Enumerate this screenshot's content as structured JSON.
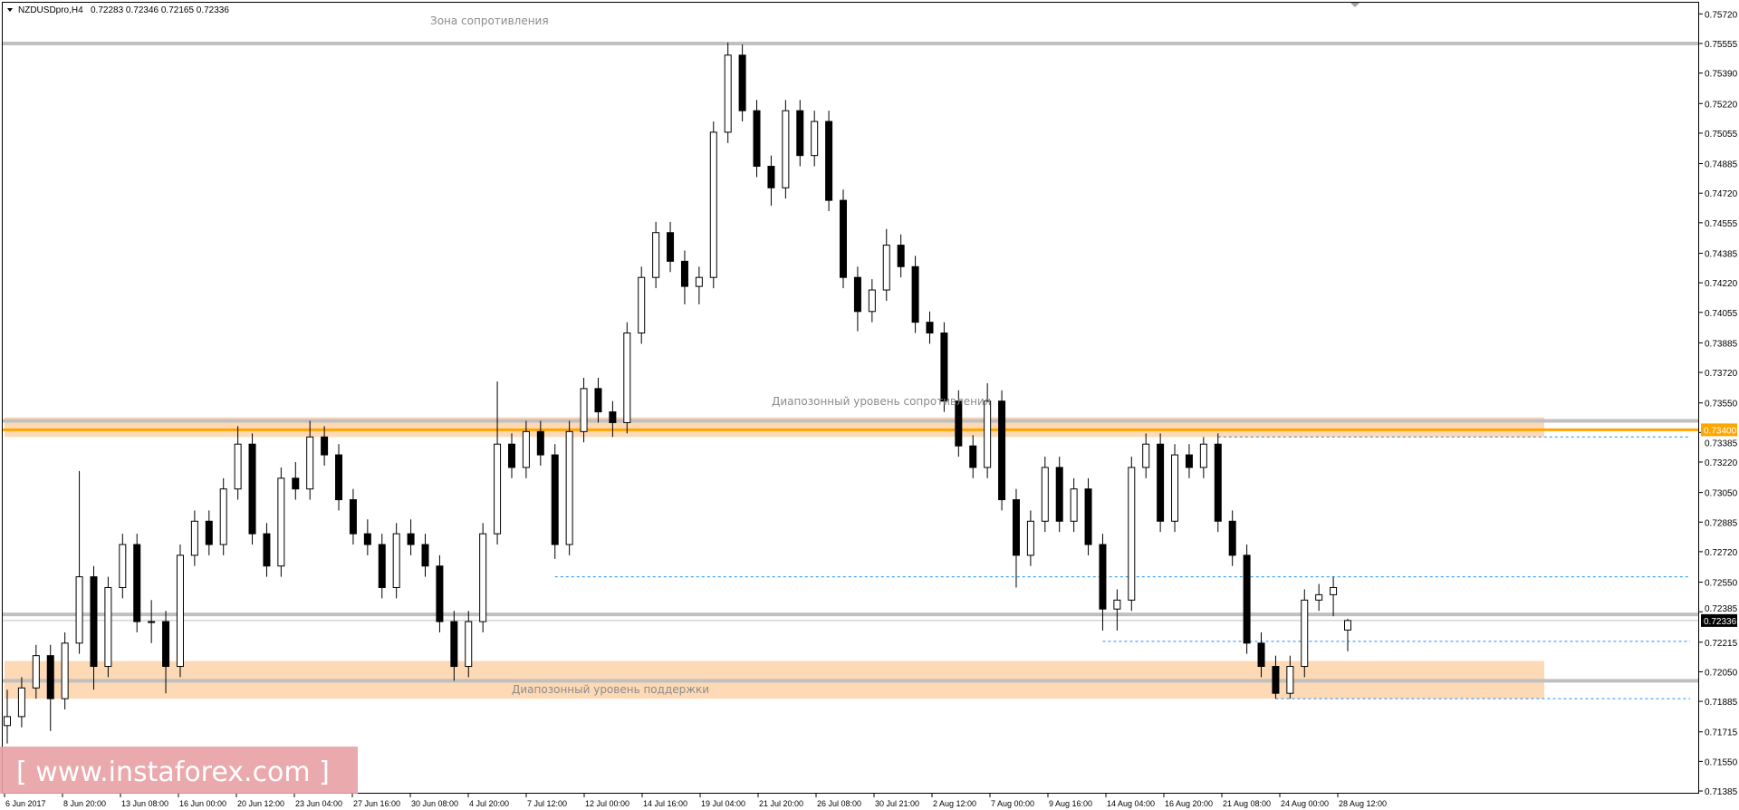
{
  "chart_data": {
    "type": "candlestick",
    "header": {
      "symbol": "NZDUSDpro,H4",
      "ohlc": "0.72283 0.72346 0.72165 0.72336"
    },
    "ylim": [
      0.7135,
      0.7576
    ],
    "y_ticks": [
      "0.75720",
      "0.75555",
      "0.75390",
      "0.75220",
      "0.75055",
      "0.74885",
      "0.74720",
      "0.74555",
      "0.74385",
      "0.74220",
      "0.74055",
      "0.73885",
      "0.73720",
      "0.73550",
      "0.73385",
      "0.73220",
      "0.73050",
      "0.72885",
      "0.72720",
      "0.72550",
      "0.72385",
      "0.72215",
      "0.72050",
      "0.71885",
      "0.71715",
      "0.71550",
      "0.71385"
    ],
    "x_ticks": [
      "6 Jun 2017",
      "8 Jun 20:00",
      "13 Jun 08:00",
      "16 Jun 00:00",
      "20 Jun 12:00",
      "23 Jun 04:00",
      "27 Jun 16:00",
      "30 Jun 08:00",
      "4 Jul 20:00",
      "7 Jul 12:00",
      "12 Jul 00:00",
      "14 Jul 16:00",
      "19 Jul 04:00",
      "21 Jul 20:00",
      "26 Jul 08:00",
      "30 Jul 21:00",
      "2 Aug 12:00",
      "7 Aug 00:00",
      "9 Aug 16:00",
      "14 Aug 04:00",
      "16 Aug 20:00",
      "21 Aug 08:00",
      "24 Aug 00:00",
      "28 Aug 12:00"
    ],
    "candles_ohlc": [
      [
        0.7175,
        0.7195,
        0.7165,
        0.718
      ],
      [
        0.718,
        0.7202,
        0.7174,
        0.7196
      ],
      [
        0.7196,
        0.722,
        0.719,
        0.7214
      ],
      [
        0.7214,
        0.722,
        0.7172,
        0.719
      ],
      [
        0.719,
        0.7227,
        0.7184,
        0.7221
      ],
      [
        0.7221,
        0.7317,
        0.7215,
        0.7258
      ],
      [
        0.7258,
        0.7264,
        0.7195,
        0.7208
      ],
      [
        0.7208,
        0.7258,
        0.7202,
        0.7252
      ],
      [
        0.7252,
        0.7282,
        0.7246,
        0.7276
      ],
      [
        0.7276,
        0.7282,
        0.7227,
        0.7233
      ],
      [
        0.7233,
        0.7245,
        0.7221,
        0.7233
      ],
      [
        0.7233,
        0.7239,
        0.7193,
        0.7208
      ],
      [
        0.7208,
        0.7276,
        0.7202,
        0.727
      ],
      [
        0.727,
        0.7295,
        0.7264,
        0.7289
      ],
      [
        0.7289,
        0.7295,
        0.727,
        0.7276
      ],
      [
        0.7276,
        0.7313,
        0.727,
        0.7307
      ],
      [
        0.7307,
        0.7342,
        0.7301,
        0.7332
      ],
      [
        0.7332,
        0.7338,
        0.7276,
        0.7282
      ],
      [
        0.7282,
        0.7288,
        0.7258,
        0.7264
      ],
      [
        0.7264,
        0.7319,
        0.7258,
        0.7313
      ],
      [
        0.7313,
        0.7322,
        0.7301,
        0.7307
      ],
      [
        0.7307,
        0.7345,
        0.7301,
        0.7336
      ],
      [
        0.7336,
        0.7342,
        0.732,
        0.7326
      ],
      [
        0.7326,
        0.7332,
        0.7295,
        0.7301
      ],
      [
        0.7301,
        0.7307,
        0.7276,
        0.7282
      ],
      [
        0.7282,
        0.729,
        0.727,
        0.7276
      ],
      [
        0.7276,
        0.7282,
        0.7246,
        0.7252
      ],
      [
        0.7252,
        0.7288,
        0.7246,
        0.7282
      ],
      [
        0.7282,
        0.729,
        0.727,
        0.7276
      ],
      [
        0.7276,
        0.7282,
        0.7258,
        0.7264
      ],
      [
        0.7264,
        0.727,
        0.7227,
        0.7233
      ],
      [
        0.7233,
        0.7239,
        0.72,
        0.7208
      ],
      [
        0.7208,
        0.7239,
        0.7202,
        0.7233
      ],
      [
        0.7233,
        0.7288,
        0.7227,
        0.7282
      ],
      [
        0.7282,
        0.7367,
        0.7276,
        0.7332
      ],
      [
        0.7332,
        0.7338,
        0.7313,
        0.7319
      ],
      [
        0.7319,
        0.7345,
        0.7313,
        0.7339
      ],
      [
        0.7339,
        0.7345,
        0.732,
        0.7326
      ],
      [
        0.7326,
        0.7332,
        0.7268,
        0.7276
      ],
      [
        0.7276,
        0.7345,
        0.727,
        0.7339
      ],
      [
        0.7339,
        0.7369,
        0.7333,
        0.7363
      ],
      [
        0.7363,
        0.7369,
        0.7344,
        0.735
      ],
      [
        0.735,
        0.7356,
        0.7336,
        0.7344
      ],
      [
        0.7344,
        0.74,
        0.7338,
        0.7394
      ],
      [
        0.7394,
        0.7431,
        0.7388,
        0.7425
      ],
      [
        0.7425,
        0.7456,
        0.7419,
        0.745
      ],
      [
        0.745,
        0.7456,
        0.7428,
        0.7434
      ],
      [
        0.7434,
        0.744,
        0.741,
        0.742
      ],
      [
        0.742,
        0.7431,
        0.741,
        0.7425
      ],
      [
        0.7425,
        0.7512,
        0.7419,
        0.7506
      ],
      [
        0.7506,
        0.7556,
        0.75,
        0.7549
      ],
      [
        0.7549,
        0.7555,
        0.7512,
        0.7518
      ],
      [
        0.7518,
        0.7524,
        0.7481,
        0.7487
      ],
      [
        0.7487,
        0.7493,
        0.7465,
        0.7475
      ],
      [
        0.7475,
        0.7524,
        0.7469,
        0.7518
      ],
      [
        0.7518,
        0.7524,
        0.7487,
        0.7493
      ],
      [
        0.7493,
        0.7518,
        0.7487,
        0.7512
      ],
      [
        0.7512,
        0.7518,
        0.7462,
        0.7468
      ],
      [
        0.7468,
        0.7474,
        0.7419,
        0.7425
      ],
      [
        0.7425,
        0.7431,
        0.7395,
        0.7406
      ],
      [
        0.7406,
        0.7424,
        0.74,
        0.7418
      ],
      [
        0.7418,
        0.7452,
        0.7412,
        0.7443
      ],
      [
        0.7443,
        0.7449,
        0.7425,
        0.7431
      ],
      [
        0.7431,
        0.7437,
        0.7394,
        0.74
      ],
      [
        0.74,
        0.7406,
        0.7388,
        0.7394
      ],
      [
        0.7394,
        0.74,
        0.735,
        0.7356
      ],
      [
        0.7356,
        0.7362,
        0.7325,
        0.7331
      ],
      [
        0.7331,
        0.7337,
        0.7313,
        0.7319
      ],
      [
        0.7319,
        0.7366,
        0.7313,
        0.7356
      ],
      [
        0.7356,
        0.7362,
        0.7295,
        0.7301
      ],
      [
        0.7301,
        0.7307,
        0.7252,
        0.727
      ],
      [
        0.727,
        0.7295,
        0.7264,
        0.7289
      ],
      [
        0.7289,
        0.7325,
        0.7283,
        0.7319
      ],
      [
        0.7319,
        0.7325,
        0.7283,
        0.7289
      ],
      [
        0.7289,
        0.7313,
        0.7283,
        0.7307
      ],
      [
        0.7307,
        0.7313,
        0.727,
        0.7276
      ],
      [
        0.7276,
        0.7282,
        0.7228,
        0.724
      ],
      [
        0.724,
        0.7251,
        0.7228,
        0.7245
      ],
      [
        0.7245,
        0.7325,
        0.7239,
        0.7319
      ],
      [
        0.7319,
        0.7338,
        0.7313,
        0.7332
      ],
      [
        0.7332,
        0.7338,
        0.7283,
        0.7289
      ],
      [
        0.7289,
        0.7332,
        0.7283,
        0.7326
      ],
      [
        0.7326,
        0.7332,
        0.7313,
        0.7319
      ],
      [
        0.7319,
        0.7336,
        0.7313,
        0.7332
      ],
      [
        0.7332,
        0.7338,
        0.7283,
        0.7289
      ],
      [
        0.7289,
        0.7295,
        0.7264,
        0.727
      ],
      [
        0.727,
        0.7276,
        0.7215,
        0.7221
      ],
      [
        0.7221,
        0.7227,
        0.7202,
        0.7208
      ],
      [
        0.7208,
        0.7214,
        0.719,
        0.7193
      ],
      [
        0.7193,
        0.7214,
        0.719,
        0.7208
      ],
      [
        0.7208,
        0.7251,
        0.7202,
        0.7245
      ],
      [
        0.7245,
        0.7254,
        0.7239,
        0.7248
      ],
      [
        0.7248,
        0.7258,
        0.7236,
        0.7252
      ],
      [
        0.72283,
        0.72346,
        0.72165,
        0.72336
      ]
    ],
    "zones": [
      {
        "name": "resistance-range",
        "from": 0.7336,
        "to": 0.7347,
        "color": "#fdd9b5"
      },
      {
        "name": "support-range",
        "from": 0.719,
        "to": 0.7211,
        "color": "#fdd9b5"
      }
    ],
    "levels": [
      {
        "name": "top-resistance",
        "price": 0.75555,
        "color": "#c0c0c0",
        "style": "solid-thick"
      },
      {
        "name": "range-resistance",
        "price": 0.7345,
        "color": "#c0c0c0",
        "style": "solid-thick"
      },
      {
        "name": "orange-level",
        "price": 0.734,
        "color": "#ffa500",
        "style": "solid-thick",
        "label": "0.73400"
      },
      {
        "name": "mid-level",
        "price": 0.7237,
        "color": "#c0c0c0",
        "style": "solid-thick"
      },
      {
        "name": "range-support",
        "price": 0.72,
        "color": "#c0c0c0",
        "style": "solid-thick"
      }
    ],
    "dashed_levels": [
      {
        "price": 0.7336,
        "from_candle": 84,
        "color": "#1e90ff"
      },
      {
        "price": 0.7258,
        "from_candle": 38,
        "color": "#1e90ff"
      },
      {
        "price": 0.7222,
        "from_candle": 76,
        "color": "#1e90ff"
      },
      {
        "price": 0.719,
        "from_candle": 88,
        "color": "#1e90ff"
      }
    ],
    "bid": {
      "price": 0.72336,
      "label": "0.72336"
    },
    "annotations": {
      "resistance_zone": "Зона сопротивления",
      "range_resistance": "Диапозонный уровень сопротивления",
      "range_support": "Диапозонный уровень поддержки"
    },
    "colors": {
      "bull_body": "#ffffff",
      "bear_body": "#000000",
      "outline": "#000000",
      "watermark_bg": "#e8a0a4"
    }
  },
  "watermark": "[ www.instaforex.com ]"
}
